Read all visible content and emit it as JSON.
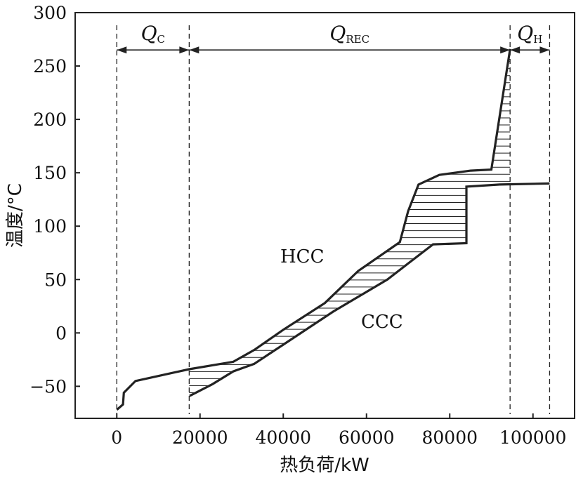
{
  "chart_data": {
    "type": "line",
    "xlabel": "热负荷/kW",
    "ylabel": "温度/°C",
    "xlim": [
      -10000,
      110000
    ],
    "ylim": [
      -80,
      300
    ],
    "xticks": [
      0,
      20000,
      40000,
      60000,
      80000,
      100000
    ],
    "xtick_labels": [
      "0",
      "20000",
      "40000",
      "60000",
      "80000",
      "100000"
    ],
    "yticks": [
      -50,
      0,
      50,
      100,
      150,
      200,
      250,
      300
    ],
    "ytick_labels": [
      "−50",
      "0",
      "50",
      "100",
      "150",
      "200",
      "250",
      "300"
    ],
    "grid": false,
    "series": [
      {
        "name": "HCC",
        "points": [
          [
            0,
            -72
          ],
          [
            1500,
            -67
          ],
          [
            1700,
            -56
          ],
          [
            4500,
            -45
          ],
          [
            17400,
            -34
          ],
          [
            28000,
            -27
          ],
          [
            33000,
            -16
          ],
          [
            40000,
            3
          ],
          [
            50000,
            28
          ],
          [
            58000,
            58
          ],
          [
            68000,
            85
          ],
          [
            70000,
            114
          ],
          [
            72500,
            139
          ],
          [
            77500,
            148
          ],
          [
            85000,
            152
          ],
          [
            90000,
            153
          ],
          [
            94500,
            266
          ]
        ]
      },
      {
        "name": "CCC",
        "points": [
          [
            17500,
            -59
          ],
          [
            23000,
            -48
          ],
          [
            28000,
            -36
          ],
          [
            33000,
            -29
          ],
          [
            40000,
            -11
          ],
          [
            52000,
            20
          ],
          [
            65000,
            50
          ],
          [
            70000,
            65
          ],
          [
            76000,
            83
          ],
          [
            84000,
            84
          ],
          [
            84000,
            137
          ],
          [
            92000,
            139
          ],
          [
            104000,
            140
          ]
        ]
      }
    ],
    "vlines": [
      0,
      17400,
      94500,
      104000
    ],
    "annotations": [
      {
        "label": "Q",
        "sub": "C",
        "from": 0,
        "to": 17400
      },
      {
        "label": "Q",
        "sub": "REC",
        "from": 17400,
        "to": 94500
      },
      {
        "label": "Q",
        "sub": "H",
        "from": 94500,
        "to": 104000
      }
    ],
    "text_labels": [
      "HCC",
      "CCC"
    ],
    "hatched_region": "between HCC and CCC over heat recovery range",
    "line_color": "#222222"
  }
}
